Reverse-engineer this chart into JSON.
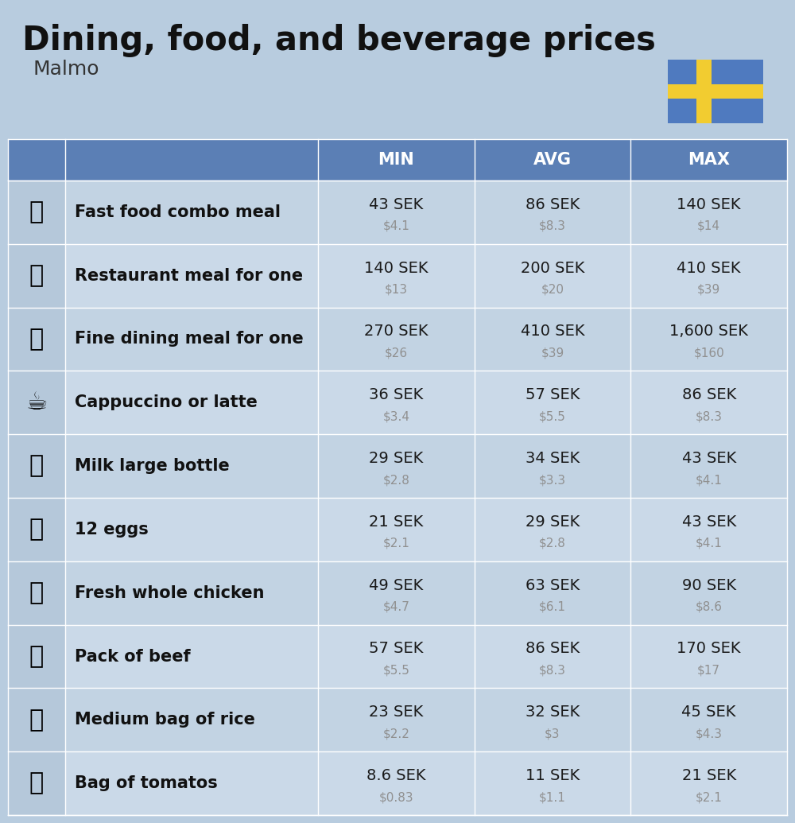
{
  "title": "Dining, food, and beverage prices",
  "subtitle": "Malmo",
  "bg_color": "#b8ccdf",
  "header_color": "#5b7fb5",
  "header_text_color": "#ffffff",
  "row_colors": [
    "#c2d3e3",
    "#cad9e8"
  ],
  "icon_col_color": "#b5c8da",
  "label_color": "#111111",
  "value_color": "#1a1a1a",
  "subvalue_color": "#909090",
  "divider_color": "#ffffff",
  "col_headers": [
    "MIN",
    "AVG",
    "MAX"
  ],
  "flag_blue": "#4f7abf",
  "flag_yellow": "#f2cc30",
  "rows": [
    {
      "label": "Fast food combo meal",
      "min_sek": "43 SEK",
      "min_usd": "$4.1",
      "avg_sek": "86 SEK",
      "avg_usd": "$8.3",
      "max_sek": "140 SEK",
      "max_usd": "$14"
    },
    {
      "label": "Restaurant meal for one",
      "min_sek": "140 SEK",
      "min_usd": "$13",
      "avg_sek": "200 SEK",
      "avg_usd": "$20",
      "max_sek": "410 SEK",
      "max_usd": "$39"
    },
    {
      "label": "Fine dining meal for one",
      "min_sek": "270 SEK",
      "min_usd": "$26",
      "avg_sek": "410 SEK",
      "avg_usd": "$39",
      "max_sek": "1,600 SEK",
      "max_usd": "$160"
    },
    {
      "label": "Cappuccino or latte",
      "min_sek": "36 SEK",
      "min_usd": "$3.4",
      "avg_sek": "57 SEK",
      "avg_usd": "$5.5",
      "max_sek": "86 SEK",
      "max_usd": "$8.3"
    },
    {
      "label": "Milk large bottle",
      "min_sek": "29 SEK",
      "min_usd": "$2.8",
      "avg_sek": "34 SEK",
      "avg_usd": "$3.3",
      "max_sek": "43 SEK",
      "max_usd": "$4.1"
    },
    {
      "label": "12 eggs",
      "min_sek": "21 SEK",
      "min_usd": "$2.1",
      "avg_sek": "29 SEK",
      "avg_usd": "$2.8",
      "max_sek": "43 SEK",
      "max_usd": "$4.1"
    },
    {
      "label": "Fresh whole chicken",
      "min_sek": "49 SEK",
      "min_usd": "$4.7",
      "avg_sek": "63 SEK",
      "avg_usd": "$6.1",
      "max_sek": "90 SEK",
      "max_usd": "$8.6"
    },
    {
      "label": "Pack of beef",
      "min_sek": "57 SEK",
      "min_usd": "$5.5",
      "avg_sek": "86 SEK",
      "avg_usd": "$8.3",
      "max_sek": "170 SEK",
      "max_usd": "$17"
    },
    {
      "label": "Medium bag of rice",
      "min_sek": "23 SEK",
      "min_usd": "$2.2",
      "avg_sek": "32 SEK",
      "avg_usd": "$3",
      "max_sek": "45 SEK",
      "max_usd": "$4.3"
    },
    {
      "label": "Bag of tomatos",
      "min_sek": "8.6 SEK",
      "min_usd": "$0.83",
      "avg_sek": "11 SEK",
      "avg_usd": "$1.1",
      "max_sek": "21 SEK",
      "max_usd": "$2.1"
    }
  ],
  "emoji_chars": [
    "🍔",
    "🍳",
    "🍽️",
    "☕",
    "🥛",
    "🥚",
    "🐔",
    "🥩",
    "🍚",
    "🍅"
  ]
}
